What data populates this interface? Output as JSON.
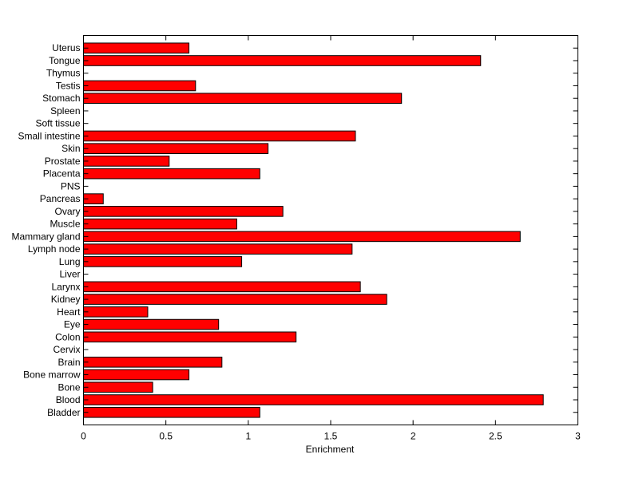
{
  "chart_data": {
    "type": "bar",
    "orientation": "horizontal",
    "title": "",
    "xlabel": "Enrichment",
    "ylabel": "",
    "xlim": [
      0,
      3
    ],
    "xticks": [
      0,
      0.5,
      1,
      1.5,
      2,
      2.5,
      3
    ],
    "xtick_labels": [
      "0",
      "0.5",
      "1",
      "1.5",
      "2",
      "2.5",
      "3"
    ],
    "grid": false,
    "bar_color": "#ff0000",
    "categories": [
      "Bladder",
      "Blood",
      "Bone",
      "Bone marrow",
      "Brain",
      "Cervix",
      "Colon",
      "Eye",
      "Heart",
      "Kidney",
      "Larynx",
      "Liver",
      "Lung",
      "Lymph node",
      "Mammary gland",
      "Muscle",
      "Ovary",
      "Pancreas",
      "PNS",
      "Placenta",
      "Prostate",
      "Skin",
      "Small intestine",
      "Soft tissue",
      "Spleen",
      "Stomach",
      "Testis",
      "Thymus",
      "Tongue",
      "Uterus"
    ],
    "values": [
      1.07,
      2.79,
      0.42,
      0.64,
      0.84,
      0,
      1.29,
      0.82,
      0.39,
      1.84,
      1.68,
      0,
      0.96,
      1.63,
      2.65,
      0.93,
      1.21,
      0.12,
      0,
      1.07,
      0.52,
      1.12,
      1.65,
      0,
      0,
      1.93,
      0.68,
      0,
      2.41,
      0.64
    ]
  }
}
